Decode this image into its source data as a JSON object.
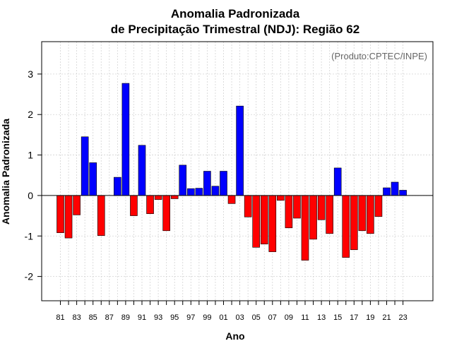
{
  "chart_data": {
    "type": "bar",
    "title": "Anomalia Padronizada",
    "subtitle": "de Precipitação Trimestral (NDJ): Região 62",
    "xlabel": "Ano",
    "ylabel": "Anomalia Padronizada",
    "credit": "(Produto:CPTEC/INPE)",
    "ylim": [
      -2.6,
      3.8
    ],
    "yticks": [
      -2,
      -1,
      0,
      1,
      2,
      3
    ],
    "xtick_labels": [
      "81",
      "83",
      "85",
      "87",
      "89",
      "91",
      "93",
      "95",
      "97",
      "99",
      "01",
      "03",
      "05",
      "07",
      "09",
      "11",
      "13",
      "15",
      "17",
      "19",
      "21",
      "23"
    ],
    "grid": true,
    "colors": {
      "positive": "#0000ff",
      "negative": "#ff0000",
      "outline": "#000000",
      "grid": "#d3d3d3"
    },
    "categories": [
      "81",
      "82",
      "83",
      "84",
      "85",
      "86",
      "87",
      "88",
      "89",
      "90",
      "91",
      "92",
      "93",
      "94",
      "95",
      "96",
      "97",
      "98",
      "99",
      "00",
      "01",
      "02",
      "03",
      "04",
      "05",
      "06",
      "07",
      "08",
      "09",
      "10",
      "11",
      "12",
      "13",
      "14",
      "15",
      "16",
      "17",
      "18",
      "19",
      "20",
      "21",
      "22",
      "23"
    ],
    "values": [
      -0.92,
      -1.05,
      -0.48,
      1.45,
      0.81,
      -0.99,
      0.0,
      0.45,
      2.77,
      -0.5,
      1.24,
      -0.45,
      -0.1,
      -0.87,
      -0.08,
      0.75,
      0.17,
      0.18,
      0.6,
      0.23,
      0.6,
      -0.2,
      2.21,
      -0.53,
      -1.28,
      -1.2,
      -1.39,
      -0.12,
      -0.8,
      -0.56,
      -1.6,
      -1.08,
      -0.6,
      -0.94,
      0.68,
      -1.53,
      -1.34,
      -0.87,
      -0.94,
      -0.52,
      0.19,
      0.33,
      0.13
    ]
  }
}
